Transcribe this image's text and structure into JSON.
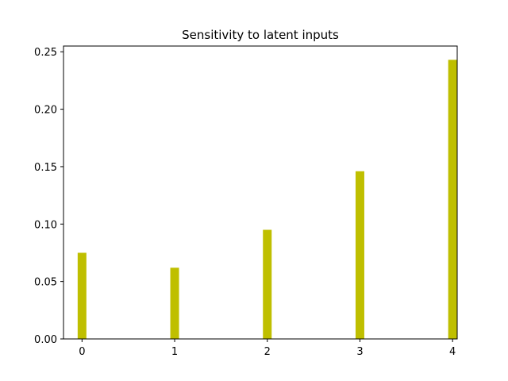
{
  "chart_data": {
    "type": "bar",
    "title": "Sensitivity to latent inputs",
    "xlabel": "",
    "ylabel": "",
    "categories": [
      "0",
      "1",
      "2",
      "3",
      "4"
    ],
    "x": [
      0,
      1,
      2,
      3,
      4
    ],
    "values": [
      0.075,
      0.062,
      0.095,
      0.146,
      0.243
    ],
    "xlim": [
      -0.2,
      4.05
    ],
    "ylim": [
      0,
      0.255
    ],
    "yticks": [
      0.0,
      0.05,
      0.1,
      0.15,
      0.2,
      0.25
    ],
    "ytick_labels": [
      "0.00",
      "0.05",
      "0.10",
      "0.15",
      "0.20",
      "0.25"
    ],
    "bar_color": "#bfbf00",
    "grid": false,
    "legend": "none"
  }
}
